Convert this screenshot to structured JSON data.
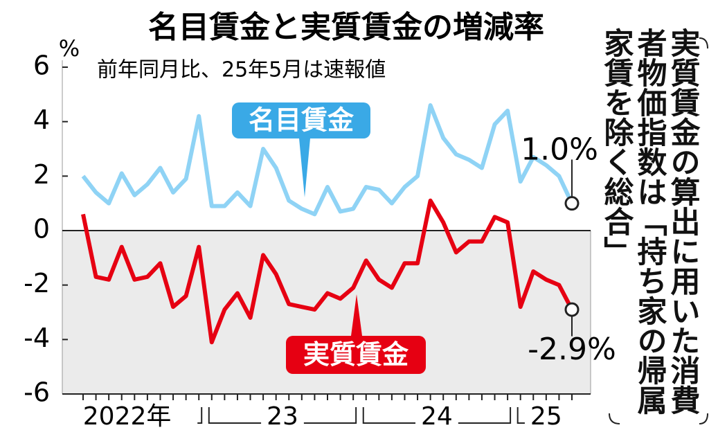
{
  "chart_data": {
    "type": "line",
    "title": "名目賃金と実質賃金の増減率",
    "subtitle": "前年同月比、25年5月は速報値",
    "y_unit": "%",
    "note": "実質賃金の算出に用いた消費者物価指数は「持ち家の帰属家賃を除く総合」",
    "year_groups": [
      {
        "label": "2022年",
        "months": 10
      },
      {
        "label": "23",
        "months": 12
      },
      {
        "label": "24",
        "months": 12
      },
      {
        "label": "25",
        "months": 5
      }
    ],
    "ylim": [
      -6,
      6
    ],
    "yticks": [
      -6,
      -4,
      -2,
      0,
      2,
      4,
      6
    ],
    "series": [
      {
        "name": "名目賃金",
        "color": "#8fd3f5",
        "label_color": "#3aa9e6",
        "values": [
          2.0,
          1.4,
          1.0,
          2.1,
          1.3,
          1.7,
          2.3,
          1.4,
          1.9,
          4.2,
          0.9,
          0.9,
          1.4,
          0.9,
          3.0,
          2.3,
          1.1,
          0.8,
          0.6,
          1.6,
          0.7,
          0.8,
          1.6,
          1.5,
          1.0,
          1.6,
          2.0,
          4.6,
          3.4,
          2.8,
          2.6,
          2.3,
          3.9,
          4.4,
          1.8,
          2.7,
          2.4,
          2.0,
          1.0
        ],
        "value_labels": [
          null,
          null,
          null,
          null,
          null,
          null,
          null,
          null,
          null,
          null,
          null,
          null,
          null,
          null,
          null,
          null,
          null,
          null,
          null,
          null,
          null,
          null,
          null,
          null,
          null,
          null,
          null,
          null,
          null,
          null,
          null,
          null,
          null,
          null,
          null,
          null,
          null,
          null,
          "1.0%"
        ]
      },
      {
        "name": "実質賃金",
        "color": "#e60012",
        "label_color": "#e60012",
        "values": [
          0.6,
          -1.7,
          -1.8,
          -0.6,
          -1.8,
          -1.7,
          -1.2,
          -2.8,
          -2.4,
          -0.6,
          -4.1,
          -2.9,
          -2.3,
          -3.2,
          -0.9,
          -1.6,
          -2.7,
          -2.8,
          -2.9,
          -2.3,
          -2.5,
          -2.1,
          -1.1,
          -1.8,
          -2.1,
          -1.2,
          -1.2,
          1.1,
          0.3,
          -0.8,
          -0.4,
          -0.4,
          0.5,
          0.3,
          -2.8,
          -1.5,
          -1.8,
          -2.0,
          -2.9
        ],
        "value_labels": [
          null,
          null,
          null,
          null,
          null,
          null,
          null,
          null,
          null,
          null,
          null,
          null,
          null,
          null,
          null,
          null,
          null,
          null,
          null,
          null,
          null,
          null,
          null,
          null,
          null,
          null,
          null,
          null,
          null,
          null,
          null,
          null,
          null,
          null,
          null,
          null,
          null,
          null,
          "-2.9%"
        ]
      }
    ]
  }
}
